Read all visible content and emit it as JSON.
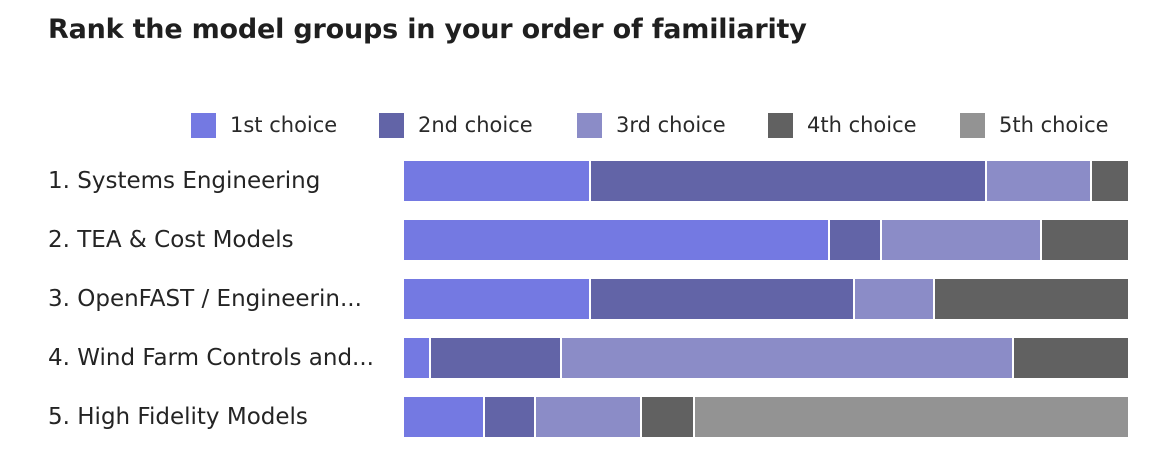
{
  "title": "Rank the model groups in your order of familiarity",
  "legend": [
    {
      "label": "1st choice",
      "color": "#7479e2"
    },
    {
      "label": "2nd choice",
      "color": "#6264a7"
    },
    {
      "label": "3rd choice",
      "color": "#8b8cc7"
    },
    {
      "label": "4th choice",
      "color": "#616161"
    },
    {
      "label": "5th choice",
      "color": "#939393"
    }
  ],
  "chart_data": {
    "type": "bar",
    "orientation": "horizontal",
    "stacked": "100%",
    "title": "Rank the model groups in your order of familiarity",
    "categories": [
      "1. Systems Engineering",
      "2. TEA & Cost Models",
      "3. OpenFAST / Engineerin...",
      "4. Wind Farm Controls and...",
      "5. High Fidelity Models"
    ],
    "series": [
      {
        "name": "1st choice",
        "color": "#7479e2",
        "values": [
          25.6,
          58.6,
          25.6,
          3.5,
          10.9
        ]
      },
      {
        "name": "2nd choice",
        "color": "#6264a7",
        "values": [
          54.6,
          7.1,
          36.4,
          18.1,
          7.1
        ]
      },
      {
        "name": "3rd choice",
        "color": "#8b8cc7",
        "values": [
          14.6,
          22.1,
          11.0,
          62.4,
          14.6
        ]
      },
      {
        "name": "4th choice",
        "color": "#616161",
        "values": [
          5.2,
          12.2,
          27.0,
          16.0,
          7.3
        ]
      },
      {
        "name": "5th choice",
        "color": "#939393",
        "values": [
          0,
          0,
          0,
          0,
          60.1
        ]
      }
    ],
    "xlim": [
      0,
      100
    ],
    "legend_position": "top",
    "grid": false
  }
}
